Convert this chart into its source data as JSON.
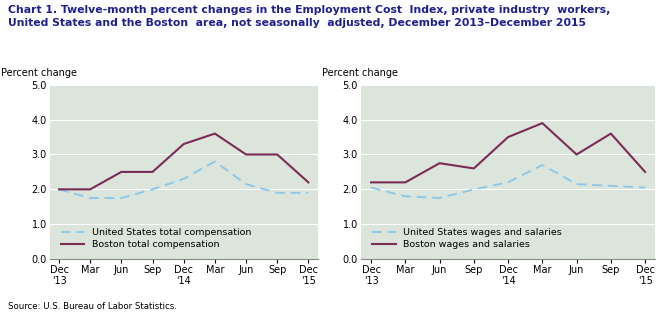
{
  "title": "Chart 1. Twelve-month percent changes in the Employment Cost  Index, private industry  workers,\nUnited States and the Boston  area, not seasonally  adjusted, December 2013–December 2015",
  "source": "Source: U.S. Bureau of Labor Statistics.",
  "ylabel": "Percent change",
  "x_labels": [
    "Dec\n'13",
    "Mar",
    "Jun",
    "Sep",
    "Dec\n'14",
    "Mar",
    "Jun",
    "Sep",
    "Dec\n'15"
  ],
  "chart1": {
    "us_total_comp": [
      2.0,
      1.75,
      1.75,
      2.0,
      2.3,
      2.8,
      2.15,
      1.9,
      1.9
    ],
    "boston_total_comp": [
      2.0,
      2.0,
      2.5,
      2.5,
      3.3,
      3.6,
      3.0,
      3.0,
      2.2
    ],
    "us_label": "United States total compensation",
    "boston_label": "Boston total compensation"
  },
  "chart2": {
    "us_wages_salaries": [
      2.05,
      1.8,
      1.75,
      2.0,
      2.2,
      2.7,
      2.15,
      2.1,
      2.05
    ],
    "boston_wages_salaries": [
      2.2,
      2.2,
      2.75,
      2.6,
      3.5,
      3.9,
      3.0,
      3.6,
      2.5
    ],
    "us_label": "United States wages and salaries",
    "boston_label": "Boston wages and salaries"
  },
  "us_color": "#8ec8e8",
  "boston_color": "#7b2b55",
  "background_color": "#dce5dc",
  "grid_color": "#ffffff",
  "title_color": "#1f1f8f",
  "title_fontsize": 7.8,
  "label_fontsize": 7.0,
  "tick_fontsize": 7.0,
  "legend_fontsize": 6.8
}
